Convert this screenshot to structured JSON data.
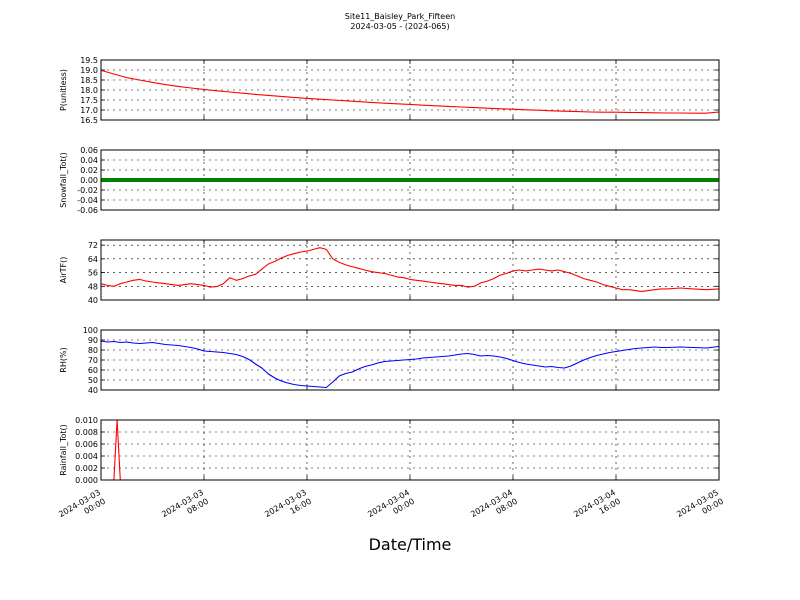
{
  "figure": {
    "title_line1": "Site11_Baisley_Park_Fifteen",
    "title_line2": "2024-03-05 - (2024-065)",
    "xlabel": "Date/Time"
  },
  "chart_data": [
    {
      "type": "line",
      "ylabel": "P(unitless)",
      "ylim": [
        16.5,
        19.5
      ],
      "yticks": [
        "19.5",
        "19.0",
        "18.5",
        "18.0",
        "17.5",
        "17.0",
        "16.5"
      ],
      "ytick_values": [
        19.5,
        19.0,
        18.5,
        18.0,
        17.5,
        17.0,
        16.5
      ],
      "color": "#ff0000",
      "series_points": [
        [
          0,
          18.98
        ],
        [
          1,
          18.8
        ],
        [
          2,
          18.62
        ],
        [
          3,
          18.5
        ],
        [
          4,
          18.38
        ],
        [
          5,
          18.27
        ],
        [
          6,
          18.18
        ],
        [
          7,
          18.1
        ],
        [
          8,
          18.03
        ],
        [
          9,
          17.96
        ],
        [
          10,
          17.9
        ],
        [
          11,
          17.84
        ],
        [
          12,
          17.78
        ],
        [
          13,
          17.73
        ],
        [
          14,
          17.68
        ],
        [
          15,
          17.63
        ],
        [
          16,
          17.58
        ],
        [
          17,
          17.54
        ],
        [
          18,
          17.5
        ],
        [
          19,
          17.46
        ],
        [
          20,
          17.42
        ],
        [
          21,
          17.38
        ],
        [
          22,
          17.34
        ],
        [
          23,
          17.31
        ],
        [
          24,
          17.28
        ],
        [
          25,
          17.24
        ],
        [
          26,
          17.21
        ],
        [
          27,
          17.18
        ],
        [
          28,
          17.15
        ],
        [
          29,
          17.12
        ],
        [
          30,
          17.09
        ],
        [
          31,
          17.06
        ],
        [
          32,
          17.04
        ],
        [
          33,
          17.01
        ],
        [
          34,
          16.99
        ],
        [
          35,
          16.96
        ],
        [
          36,
          16.94
        ],
        [
          37,
          16.92
        ],
        [
          38,
          16.9
        ],
        [
          39,
          16.89
        ],
        [
          40,
          16.89
        ],
        [
          41,
          16.88
        ],
        [
          42,
          16.87
        ],
        [
          43,
          16.86
        ],
        [
          44,
          16.85
        ],
        [
          45,
          16.85
        ],
        [
          46,
          16.84
        ],
        [
          47,
          16.84
        ],
        [
          48,
          16.9
        ]
      ]
    },
    {
      "type": "line",
      "ylabel": "Snowfall_Tot()",
      "ylim": [
        -0.06,
        0.06
      ],
      "yticks": [
        "0.06",
        "0.04",
        "0.02",
        "0.00",
        "-0.02",
        "-0.04",
        "-0.06"
      ],
      "ytick_values": [
        0.06,
        0.04,
        0.02,
        0.0,
        -0.02,
        -0.04,
        -0.06
      ],
      "color": "#008000",
      "thick": true,
      "series_points": [
        [
          0,
          0
        ],
        [
          48,
          0
        ]
      ]
    },
    {
      "type": "line",
      "ylabel": "AirTF()",
      "ylim": [
        40,
        75
      ],
      "yticks": [
        "72",
        "64",
        "56",
        "48",
        "40"
      ],
      "ytick_values": [
        72,
        64,
        56,
        48,
        40
      ],
      "color": "#ff0000",
      "series_points": [
        [
          0,
          49.5
        ],
        [
          0.5,
          48.5
        ],
        [
          1,
          48
        ],
        [
          1.5,
          49.5
        ],
        [
          2,
          50.5
        ],
        [
          2.5,
          51.5
        ],
        [
          3,
          52
        ],
        [
          3.5,
          51
        ],
        [
          4,
          50.5
        ],
        [
          4.5,
          50
        ],
        [
          5,
          49.5
        ],
        [
          5.5,
          49
        ],
        [
          6,
          48.5
        ],
        [
          6.5,
          49
        ],
        [
          7,
          49.5
        ],
        [
          7.5,
          49
        ],
        [
          8,
          48.5
        ],
        [
          8.5,
          47.5
        ],
        [
          9,
          47.8
        ],
        [
          9.5,
          49.5
        ],
        [
          10,
          53
        ],
        [
          10.5,
          51.5
        ],
        [
          11,
          52.5
        ],
        [
          11.5,
          54
        ],
        [
          12,
          55
        ],
        [
          12.5,
          58
        ],
        [
          13,
          61
        ],
        [
          13.5,
          62.5
        ],
        [
          14,
          64.5
        ],
        [
          14.5,
          66
        ],
        [
          15,
          67
        ],
        [
          15.5,
          68
        ],
        [
          16,
          68.5
        ],
        [
          16.5,
          69.5
        ],
        [
          17,
          70.5
        ],
        [
          17.5,
          69.5
        ],
        [
          18,
          64
        ],
        [
          18.5,
          62
        ],
        [
          19,
          60.5
        ],
        [
          19.5,
          59.5
        ],
        [
          20,
          58.5
        ],
        [
          20.5,
          57.5
        ],
        [
          21,
          56.5
        ],
        [
          21.5,
          56
        ],
        [
          22,
          55.5
        ],
        [
          22.5,
          54.5
        ],
        [
          23,
          53.5
        ],
        [
          23.5,
          53
        ],
        [
          24,
          52
        ],
        [
          24.5,
          51.5
        ],
        [
          25,
          51
        ],
        [
          25.5,
          50.5
        ],
        [
          26,
          50
        ],
        [
          26.5,
          49.5
        ],
        [
          27,
          49
        ],
        [
          27.5,
          48.5
        ],
        [
          28,
          48.5
        ],
        [
          28.5,
          47.5
        ],
        [
          29,
          48
        ],
        [
          29.5,
          50
        ],
        [
          30,
          51
        ],
        [
          30.5,
          52.5
        ],
        [
          31,
          54.5
        ],
        [
          31.5,
          55.5
        ],
        [
          32,
          57
        ],
        [
          32.5,
          57.5
        ],
        [
          33,
          57
        ],
        [
          33.5,
          57.5
        ],
        [
          34,
          58
        ],
        [
          34.5,
          57.5
        ],
        [
          35,
          57
        ],
        [
          35.5,
          57.5
        ],
        [
          36,
          56.5
        ],
        [
          36.5,
          55.5
        ],
        [
          37,
          54
        ],
        [
          37.5,
          52.5
        ],
        [
          38,
          51.5
        ],
        [
          38.5,
          50.5
        ],
        [
          39,
          49
        ],
        [
          39.5,
          48
        ],
        [
          40,
          47
        ],
        [
          40.5,
          46
        ],
        [
          41,
          46
        ],
        [
          41.5,
          45.5
        ],
        [
          42,
          45
        ],
        [
          42.5,
          45.5
        ],
        [
          43,
          46
        ],
        [
          43.5,
          46.5
        ],
        [
          44,
          46.5
        ],
        [
          45,
          47
        ],
        [
          46,
          46.5
        ],
        [
          47,
          46
        ],
        [
          48,
          46.5
        ]
      ]
    },
    {
      "type": "line",
      "ylabel": "RH(%)",
      "ylim": [
        40,
        100
      ],
      "yticks": [
        "100",
        "90",
        "80",
        "70",
        "60",
        "50",
        "40"
      ],
      "ytick_values": [
        100,
        90,
        80,
        70,
        60,
        50,
        40
      ],
      "color": "#0000ff",
      "series_points": [
        [
          0,
          89
        ],
        [
          0.5,
          88
        ],
        [
          1,
          88.5
        ],
        [
          1.5,
          87.5
        ],
        [
          2,
          88
        ],
        [
          2.5,
          87
        ],
        [
          3,
          86.5
        ],
        [
          3.5,
          87
        ],
        [
          4,
          87.5
        ],
        [
          4.5,
          86.5
        ],
        [
          5,
          85.5
        ],
        [
          5.5,
          85
        ],
        [
          6,
          84.5
        ],
        [
          6.5,
          83.5
        ],
        [
          7,
          82.5
        ],
        [
          7.5,
          81
        ],
        [
          8,
          79
        ],
        [
          8.5,
          78.5
        ],
        [
          9,
          78
        ],
        [
          9.5,
          77.5
        ],
        [
          10,
          76.5
        ],
        [
          10.5,
          75.5
        ],
        [
          11,
          73.5
        ],
        [
          11.5,
          70.5
        ],
        [
          12,
          66
        ],
        [
          12.5,
          62
        ],
        [
          13,
          56
        ],
        [
          13.5,
          52
        ],
        [
          14,
          49
        ],
        [
          14.5,
          47
        ],
        [
          15,
          45.5
        ],
        [
          15.5,
          44.5
        ],
        [
          16,
          44
        ],
        [
          16.5,
          43.5
        ],
        [
          17,
          43
        ],
        [
          17.5,
          42.5
        ],
        [
          18,
          48
        ],
        [
          18.5,
          54
        ],
        [
          19,
          56.5
        ],
        [
          19.5,
          58
        ],
        [
          20,
          61
        ],
        [
          20.5,
          63.5
        ],
        [
          21,
          65
        ],
        [
          21.5,
          67
        ],
        [
          22,
          68.5
        ],
        [
          22.5,
          69
        ],
        [
          23,
          69.5
        ],
        [
          23.5,
          70
        ],
        [
          24,
          70.5
        ],
        [
          24.5,
          71
        ],
        [
          25,
          72
        ],
        [
          25.5,
          72.5
        ],
        [
          26,
          73
        ],
        [
          26.5,
          73.5
        ],
        [
          27,
          74
        ],
        [
          27.5,
          75
        ],
        [
          28,
          76
        ],
        [
          28.5,
          76.5
        ],
        [
          29,
          75.5
        ],
        [
          29.5,
          74
        ],
        [
          30,
          74.5
        ],
        [
          30.5,
          74
        ],
        [
          31,
          73
        ],
        [
          31.5,
          71.5
        ],
        [
          32,
          69.5
        ],
        [
          32.5,
          67.5
        ],
        [
          33,
          66
        ],
        [
          33.5,
          65
        ],
        [
          34,
          64
        ],
        [
          34.5,
          63
        ],
        [
          35,
          63.5
        ],
        [
          35.5,
          62.5
        ],
        [
          36,
          62
        ],
        [
          36.5,
          64
        ],
        [
          37,
          67
        ],
        [
          37.5,
          70
        ],
        [
          38,
          72.5
        ],
        [
          38.5,
          74.5
        ],
        [
          39,
          76
        ],
        [
          39.5,
          77.5
        ],
        [
          40,
          78.5
        ],
        [
          40.5,
          79.5
        ],
        [
          41,
          80.5
        ],
        [
          41.5,
          81.5
        ],
        [
          42,
          82
        ],
        [
          42.5,
          82.5
        ],
        [
          43,
          83
        ],
        [
          43.5,
          82.5
        ],
        [
          44,
          82.5
        ],
        [
          45,
          83
        ],
        [
          46,
          82.5
        ],
        [
          47,
          82
        ],
        [
          48,
          83.5
        ]
      ]
    },
    {
      "type": "line",
      "ylabel": "Rainfall_Tot()",
      "ylim": [
        0,
        0.01
      ],
      "yticks": [
        "0.010",
        "0.008",
        "0.006",
        "0.004",
        "0.002",
        "0.000"
      ],
      "ytick_values": [
        0.01,
        0.008,
        0.006,
        0.004,
        0.002,
        0.0
      ],
      "color": "#ff0000",
      "series_points": [
        [
          0,
          0
        ],
        [
          1,
          0
        ],
        [
          1.25,
          0.01
        ],
        [
          1.5,
          0
        ],
        [
          48,
          0
        ]
      ]
    }
  ],
  "xaxis": {
    "xlim": [
      0,
      48
    ],
    "ticks": [
      {
        "value": 0,
        "line1": "2024-03-03",
        "line2": "00:00"
      },
      {
        "value": 8,
        "line1": "2024-03-03",
        "line2": "08:00"
      },
      {
        "value": 16,
        "line1": "2024-03-03",
        "line2": "16:00"
      },
      {
        "value": 24,
        "line1": "2024-03-04",
        "line2": "00:00"
      },
      {
        "value": 32,
        "line1": "2024-03-04",
        "line2": "08:00"
      },
      {
        "value": 40,
        "line1": "2024-03-04",
        "line2": "16:00"
      },
      {
        "value": 48,
        "line1": "2024-03-05",
        "line2": "00:00"
      }
    ]
  }
}
